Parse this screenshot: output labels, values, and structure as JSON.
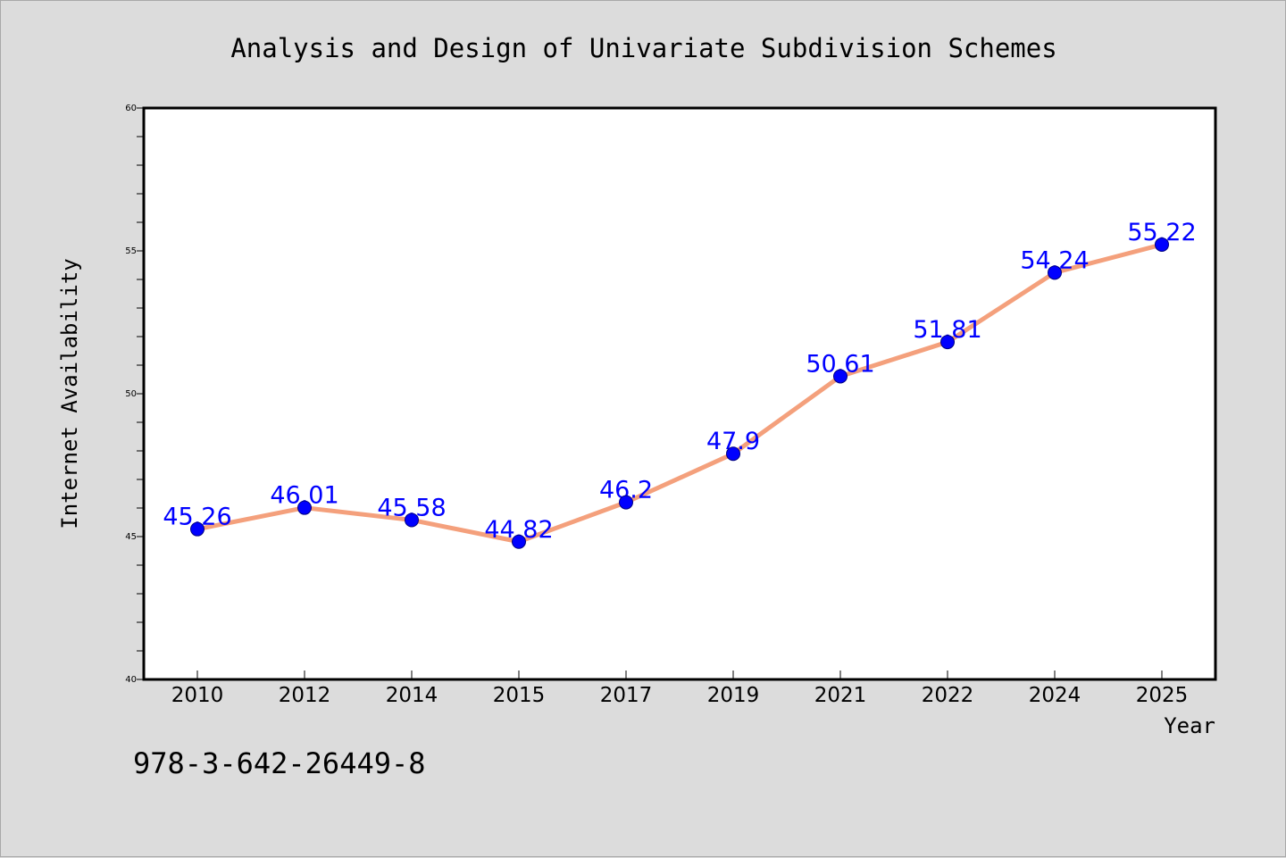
{
  "chart_data": {
    "type": "line",
    "title": "Analysis and Design of Univariate Subdivision Schemes",
    "xlabel": "Year",
    "ylabel": "Internet Availability",
    "categories": [
      "2010",
      "2012",
      "2014",
      "2015",
      "2017",
      "2019",
      "2021",
      "2022",
      "2024",
      "2025"
    ],
    "series": [
      {
        "values": [
          45.26,
          46.01,
          45.58,
          44.82,
          46.2,
          47.9,
          50.61,
          51.81,
          54.24,
          55.22
        ],
        "labels": [
          "45.26",
          "46.01",
          "45.58",
          "44.82",
          "46.2",
          "47.9",
          "50.61",
          "51.81",
          "54.24",
          "55.22"
        ]
      }
    ],
    "ylim": [
      40,
      60
    ],
    "yticks": [
      "40",
      "45",
      "50",
      "55",
      "60"
    ],
    "grid": false,
    "legend": "none",
    "colors": {
      "line": "#f4a07c",
      "marker_fill": "#0000ff",
      "marker_stroke": "#000080",
      "data_label": "#0000ff",
      "plot_background": "#ffffff",
      "page_background": "#dcdcdc"
    },
    "annotation": "978-3-642-26449-8"
  }
}
